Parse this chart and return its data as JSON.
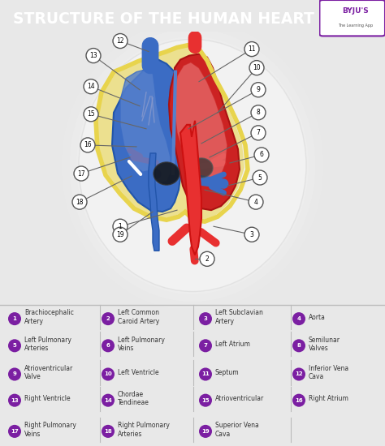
{
  "title": "STRUCTURE OF THE HUMAN HEART",
  "title_bg_color": "#8B008B",
  "title_text_color": "#FFFFFF",
  "bg_color": "#E8E8E8",
  "legend_bg_color": "#E0E0E0",
  "purple_color": "#7B1FA2",
  "label_items": [
    {
      "num": 1,
      "text": "Brachiocephalic\nArtery"
    },
    {
      "num": 2,
      "text": "Left Common\nCaroid Artery"
    },
    {
      "num": 3,
      "text": "Left Subclavian\nArtery"
    },
    {
      "num": 4,
      "text": "Aorta"
    },
    {
      "num": 5,
      "text": "Left Pulmonary\nArteries"
    },
    {
      "num": 6,
      "text": "Left Pulmonary\nVeins"
    },
    {
      "num": 7,
      "text": "Left Atrium"
    },
    {
      "num": 8,
      "text": "Semilunar\nValves"
    },
    {
      "num": 9,
      "text": "Atrioventricular\nValve"
    },
    {
      "num": 10,
      "text": "Left Ventricle"
    },
    {
      "num": 11,
      "text": "Septum"
    },
    {
      "num": 12,
      "text": "Inferior Vena\nCava"
    },
    {
      "num": 13,
      "text": "Right Ventricle"
    },
    {
      "num": 14,
      "text": "Chordae\nTendineae"
    },
    {
      "num": 15,
      "text": "Atrioventricular"
    },
    {
      "num": 16,
      "text": "Right Atrium"
    },
    {
      "num": 17,
      "text": "Right Pulmonary\nVeins"
    },
    {
      "num": 18,
      "text": "Right Pulmonary\nArteries"
    },
    {
      "num": 19,
      "text": "Superior Vena\nCava"
    }
  ]
}
